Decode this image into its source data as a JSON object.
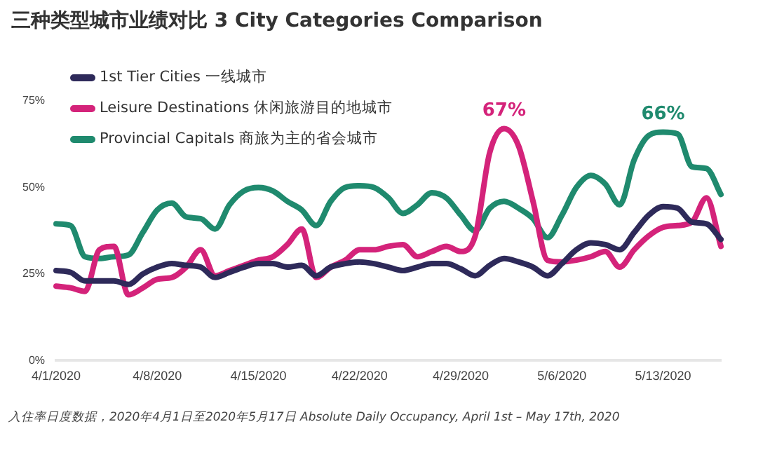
{
  "chart_data": {
    "type": "line",
    "title": "三种类型城市业绩对比 3 City Categories Comparison",
    "categories": [
      "4/1/2020",
      null,
      null,
      null,
      null,
      null,
      null,
      "4/8/2020",
      null,
      null,
      null,
      null,
      null,
      null,
      "4/15/2020",
      null,
      null,
      null,
      null,
      null,
      null,
      "4/22/2020",
      null,
      null,
      null,
      null,
      null,
      null,
      "4/29/2020",
      null,
      null,
      null,
      null,
      null,
      null,
      "5/6/2020",
      null,
      null,
      null,
      null,
      null,
      null,
      "5/13/2020",
      null,
      null,
      null,
      null
    ],
    "series": [
      {
        "name": "1st Tier Cities 一线城市",
        "color": "#2e2a5a",
        "values": [
          26,
          25.5,
          23,
          23,
          23,
          22,
          25,
          27,
          28,
          27.5,
          27,
          24,
          25.5,
          27,
          28,
          28,
          27,
          27.5,
          24.5,
          27,
          28,
          28.5,
          28,
          27,
          26,
          27,
          28,
          28,
          26.5,
          24.5,
          27.5,
          29.5,
          28.5,
          27,
          24.5,
          28,
          32,
          34,
          33.5,
          32,
          37,
          42,
          44.5,
          44,
          40,
          39.5,
          35
        ]
      },
      {
        "name": "Leisure Destinations 休闲旅游目的地城市",
        "color": "#d4237a",
        "values": [
          21.5,
          21,
          20,
          32,
          33,
          19,
          21,
          23.5,
          24,
          27,
          32,
          24.5,
          26,
          27.5,
          29,
          30,
          33.5,
          38,
          24,
          27,
          29,
          32,
          32,
          33,
          33.5,
          30,
          31.5,
          33,
          31.5,
          36,
          60,
          67,
          62,
          46,
          29,
          28.5,
          29,
          30,
          31.5,
          27,
          32,
          36,
          38.5,
          39,
          40,
          47,
          33
        ],
        "value_labels": [
          null,
          null,
          null,
          null,
          null,
          null,
          null,
          null,
          null,
          null,
          null,
          null,
          null,
          null,
          null,
          null,
          null,
          null,
          null,
          null,
          null,
          null,
          null,
          null,
          null,
          null,
          null,
          null,
          null,
          null,
          null,
          "67%",
          null,
          null,
          null,
          null,
          null,
          null,
          null,
          null,
          null,
          null,
          null,
          null,
          null,
          null,
          null
        ]
      },
      {
        "name": "Provincial Capitals 商旅为主的省会城市",
        "color": "#1f8a6e",
        "values": [
          39.5,
          39,
          30,
          29.5,
          30,
          30.5,
          37,
          43.5,
          45.5,
          41.5,
          41,
          38,
          45,
          49,
          50,
          49,
          46,
          43.5,
          39,
          46,
          50,
          50.5,
          50,
          47,
          42.5,
          45,
          48.5,
          47,
          42,
          37.5,
          44,
          46,
          44,
          41,
          35.5,
          42,
          50,
          53.5,
          51,
          45,
          58,
          65,
          66,
          65.5,
          56,
          55.5,
          48
        ],
        "value_labels": [
          null,
          null,
          null,
          null,
          null,
          null,
          null,
          null,
          null,
          null,
          null,
          null,
          null,
          null,
          null,
          null,
          null,
          null,
          null,
          null,
          null,
          null,
          null,
          null,
          null,
          null,
          null,
          null,
          null,
          null,
          null,
          null,
          null,
          null,
          null,
          null,
          null,
          null,
          null,
          null,
          null,
          null,
          "66%",
          null,
          null,
          null,
          null
        ]
      }
    ],
    "ylim": [
      0,
      75
    ],
    "yticks": [
      {
        "value": 0,
        "label": "0%"
      },
      {
        "value": 25,
        "label": "25%"
      },
      {
        "value": 50,
        "label": "50%"
      },
      {
        "value": 75,
        "label": "75%"
      }
    ],
    "grid": false,
    "legend": "top left",
    "marker": "none",
    "line_style": "solid",
    "annotations": [
      "入住率日度数据，2020年4月1日至2020年5月17日   Absolute Daily Occupancy, April 1st – May 17th, 2020"
    ]
  }
}
